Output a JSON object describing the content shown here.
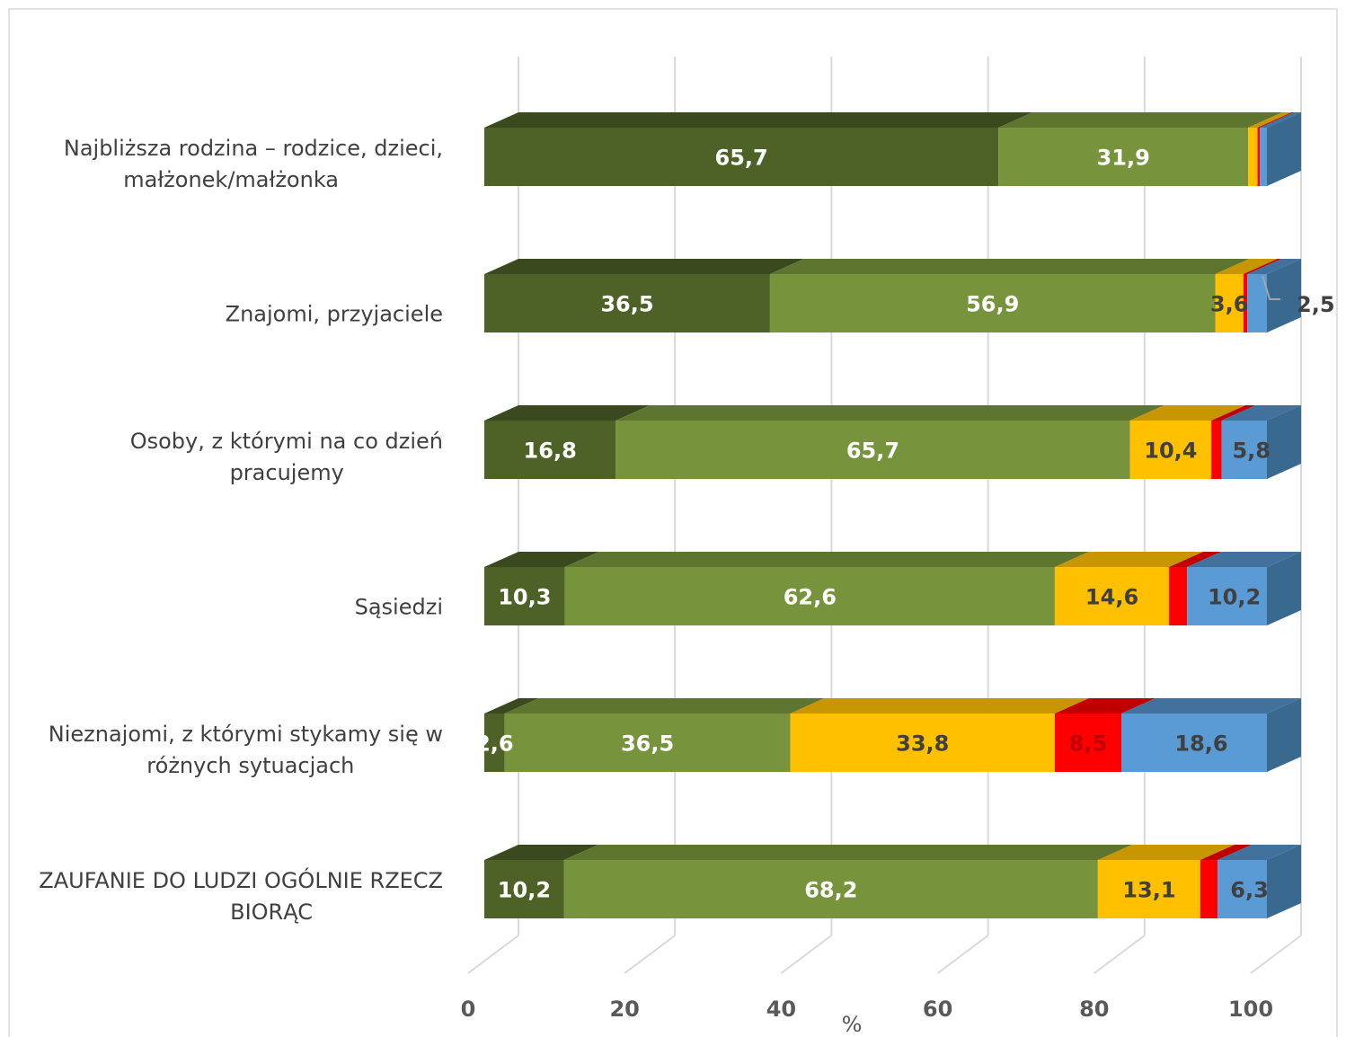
{
  "chart_data": {
    "type": "bar",
    "orientation": "horizontal",
    "stacked": true,
    "style": "3d",
    "xlabel": "%",
    "xlim": [
      0,
      100
    ],
    "xticks": [
      "0",
      "20",
      "40",
      "60",
      "80",
      "100"
    ],
    "grid": true,
    "categories": [
      [
        "Najbliższa rodzina – rodzice, dzieci,",
        "małżonek/małżonka"
      ],
      [
        "Znajomi, przyjaciele"
      ],
      [
        "Osoby, z którymi na co dzień",
        "pracujemy"
      ],
      [
        "Sąsiedzi"
      ],
      [
        "Nieznajomi, z którymi stykamy się w",
        "różnych sytuacjach"
      ],
      [
        "ZAUFANIE DO LUDZI OGÓLNIE RZECZ",
        "BIORĄC"
      ]
    ],
    "series": [
      {
        "color": "#4e6228",
        "top_color": "#3b4a1e",
        "side_color": "#3b4a1e",
        "label_color": "#ffffff",
        "values": [
          65.7,
          36.5,
          16.8,
          10.3,
          2.6,
          10.2
        ],
        "labels": [
          "65,7",
          "36,5",
          "16,8",
          "10,3",
          "2,6",
          "10,2"
        ]
      },
      {
        "color": "#77933c",
        "top_color": "#5e7530",
        "side_color": "#5e7530",
        "label_color": "#ffffff",
        "values": [
          31.9,
          56.9,
          65.7,
          62.6,
          36.5,
          68.2
        ],
        "labels": [
          "31,9",
          "56,9",
          "65,7",
          "62,6",
          "36,5",
          "68,2"
        ]
      },
      {
        "color": "#ffc000",
        "top_color": "#c79600",
        "side_color": "#c79600",
        "label_color": "#404040",
        "values": [
          1.2,
          3.6,
          10.4,
          14.6,
          33.8,
          13.1
        ],
        "labels": [
          "",
          "3,6",
          "10,4",
          "14,6",
          "33,8",
          "13,1"
        ]
      },
      {
        "color": "#ff0000",
        "top_color": "#c00000",
        "side_color": "#c00000",
        "label_color": "#c00000",
        "values": [
          0.3,
          0.5,
          1.3,
          2.3,
          8.5,
          2.2
        ],
        "labels": [
          "",
          "",
          "",
          "",
          "8,5",
          ""
        ]
      },
      {
        "color": "#5b9bd5",
        "top_color": "#41719c",
        "side_color": "#3a6990",
        "label_color": "#404040",
        "values": [
          0.9,
          2.5,
          5.8,
          10.2,
          18.6,
          6.3
        ],
        "labels": [
          "",
          "2,5",
          "5,8",
          "10,2",
          "18,6",
          "6,3"
        ]
      }
    ],
    "callouts": [
      {
        "category_index": 1,
        "series_index": 4,
        "text": "2,5"
      }
    ]
  }
}
